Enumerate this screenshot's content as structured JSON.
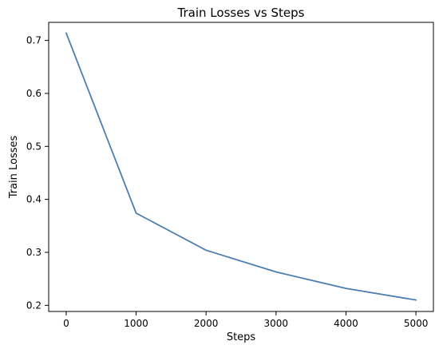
{
  "chart_data": {
    "type": "line",
    "title": "Train Losses vs Steps",
    "xlabel": "Steps",
    "ylabel": "Train Losses",
    "xlim": [
      -250,
      5250
    ],
    "ylim": [
      0.1884,
      0.7341
    ],
    "x_ticks": [
      0,
      1000,
      2000,
      3000,
      4000,
      5000
    ],
    "x_tick_labels": [
      "0",
      "1000",
      "2000",
      "3000",
      "4000",
      "5000"
    ],
    "y_ticks": [
      0.2,
      0.3,
      0.4,
      0.5,
      0.6,
      0.7
    ],
    "y_tick_labels": [
      "0.2",
      "0.3",
      "0.4",
      "0.5",
      "0.6",
      "0.7"
    ],
    "grid": false,
    "series": [
      {
        "color": "#4a7eb0",
        "x": [
          0,
          1000,
          2000,
          3000,
          4000,
          5000
        ],
        "y": [
          0.714,
          0.374,
          0.304,
          0.263,
          0.232,
          0.21
        ]
      }
    ]
  }
}
